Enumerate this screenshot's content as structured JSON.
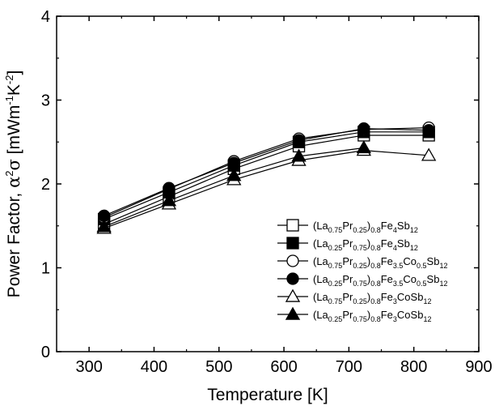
{
  "chart_data": {
    "type": "line",
    "xlabel": "Temperature [K]",
    "ylabel": {
      "prefix": "Power Factor, ",
      "alpha": "α",
      "sup2": "2",
      "sigma": "σ",
      "units_open": " [mWm",
      "sup_m1": "-1",
      "k": "K",
      "sup_m2": "-2",
      "units_close": "]"
    },
    "xlim": [
      250,
      900
    ],
    "ylim": [
      0,
      4
    ],
    "xticks": [
      300,
      400,
      500,
      600,
      700,
      800,
      900
    ],
    "yticks": [
      0,
      1,
      2,
      3,
      4
    ],
    "x": [
      323,
      423,
      523,
      623,
      723,
      823
    ],
    "legend_position": "bottom-right",
    "series": [
      {
        "marker": "square-open",
        "values": [
          1.52,
          1.85,
          2.18,
          2.45,
          2.58,
          2.58
        ],
        "label": [
          {
            "t": "(La"
          },
          {
            "t": "0.75",
            "s": "sub"
          },
          {
            "t": "Pr"
          },
          {
            "t": "0.25",
            "s": "sub"
          },
          {
            "t": ")"
          },
          {
            "t": "0.8",
            "s": "sub"
          },
          {
            "t": "Fe"
          },
          {
            "t": "4",
            "s": "sub"
          },
          {
            "t": "Sb"
          },
          {
            "t": "12",
            "s": "sub"
          }
        ]
      },
      {
        "marker": "square-filled",
        "values": [
          1.58,
          1.9,
          2.22,
          2.5,
          2.62,
          2.62
        ],
        "label": [
          {
            "t": "(La"
          },
          {
            "t": "0.25",
            "s": "sub"
          },
          {
            "t": "Pr"
          },
          {
            "t": "0.75",
            "s": "sub"
          },
          {
            "t": ")"
          },
          {
            "t": "0.8",
            "s": "sub"
          },
          {
            "t": "Fe"
          },
          {
            "t": "4",
            "s": "sub"
          },
          {
            "t": "Sb"
          },
          {
            "t": "12",
            "s": "sub"
          }
        ]
      },
      {
        "marker": "circle-open",
        "values": [
          1.6,
          1.94,
          2.27,
          2.54,
          2.65,
          2.67
        ],
        "label": [
          {
            "t": "(La"
          },
          {
            "t": "0.75",
            "s": "sub"
          },
          {
            "t": "Pr"
          },
          {
            "t": "0.25",
            "s": "sub"
          },
          {
            "t": ")"
          },
          {
            "t": "0.8",
            "s": "sub"
          },
          {
            "t": "Fe"
          },
          {
            "t": "3.5",
            "s": "sub"
          },
          {
            "t": "Co"
          },
          {
            "t": "0.5",
            "s": "sub"
          },
          {
            "t": "Sb"
          },
          {
            "t": "12",
            "s": "sub"
          }
        ]
      },
      {
        "marker": "circle-filled",
        "values": [
          1.62,
          1.95,
          2.25,
          2.52,
          2.66,
          2.64
        ],
        "label": [
          {
            "t": "(La"
          },
          {
            "t": "0.25",
            "s": "sub"
          },
          {
            "t": "Pr"
          },
          {
            "t": "0.75",
            "s": "sub"
          },
          {
            "t": ")"
          },
          {
            "t": "0.8",
            "s": "sub"
          },
          {
            "t": "Fe"
          },
          {
            "t": "3.5",
            "s": "sub"
          },
          {
            "t": "Co"
          },
          {
            "t": "0.5",
            "s": "sub"
          },
          {
            "t": "Sb"
          },
          {
            "t": "12",
            "s": "sub"
          }
        ]
      },
      {
        "marker": "triangle-open",
        "values": [
          1.47,
          1.76,
          2.05,
          2.28,
          2.4,
          2.34
        ],
        "label": [
          {
            "t": "(La"
          },
          {
            "t": "0.75",
            "s": "sub"
          },
          {
            "t": "Pr"
          },
          {
            "t": "0.25",
            "s": "sub"
          },
          {
            "t": ")"
          },
          {
            "t": "0.8",
            "s": "sub"
          },
          {
            "t": "Fe"
          },
          {
            "t": "3",
            "s": "sub"
          },
          {
            "t": "CoSb"
          },
          {
            "t": "12",
            "s": "sub"
          }
        ]
      },
      {
        "marker": "triangle-filled",
        "values": [
          1.49,
          1.8,
          2.1,
          2.33,
          2.43,
          null
        ],
        "label": [
          {
            "t": "(La"
          },
          {
            "t": "0.25",
            "s": "sub"
          },
          {
            "t": "Pr"
          },
          {
            "t": "0.75",
            "s": "sub"
          },
          {
            "t": ")"
          },
          {
            "t": "0.8",
            "s": "sub"
          },
          {
            "t": "Fe"
          },
          {
            "t": "3",
            "s": "sub"
          },
          {
            "t": "CoSb"
          },
          {
            "t": "12",
            "s": "sub"
          }
        ]
      }
    ]
  }
}
